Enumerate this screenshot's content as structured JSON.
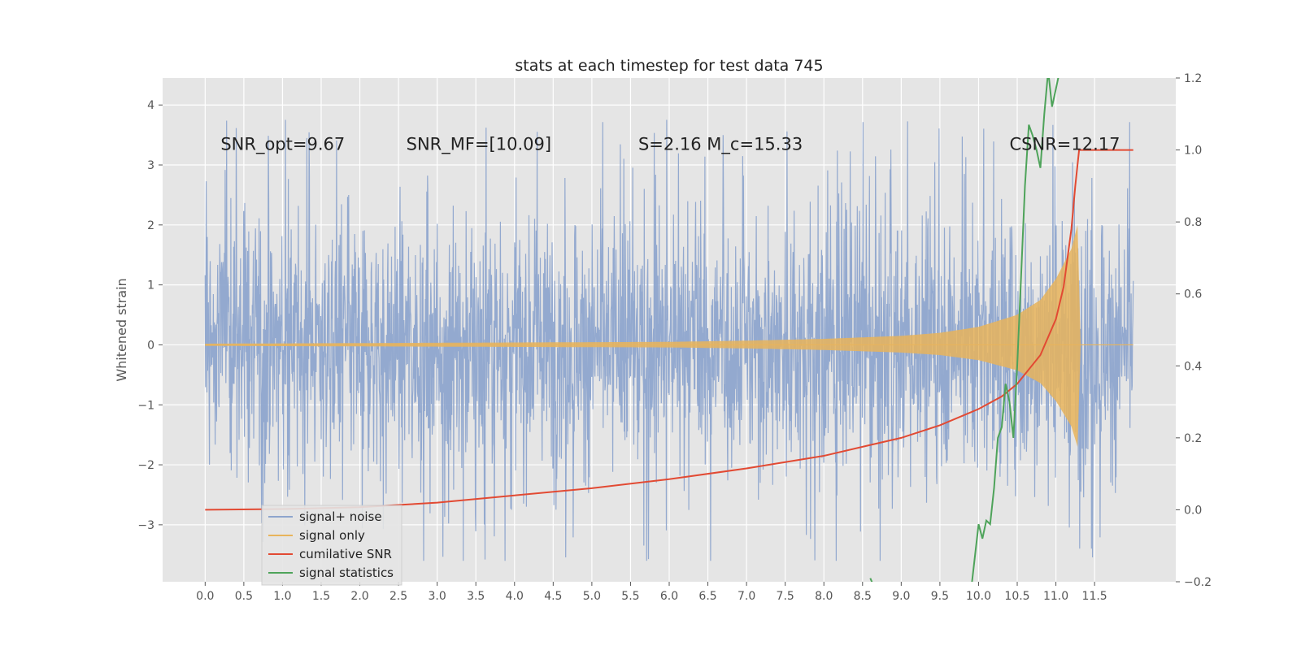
{
  "chart_data": {
    "type": "line",
    "title": "stats at each timestep for test data 745",
    "xlabel": "",
    "ylabel": "Whitened strain",
    "y2label": "",
    "xlim": [
      -0.55,
      12.55
    ],
    "ylim": [
      -3.95,
      4.45
    ],
    "y2lim": [
      -0.2,
      1.2
    ],
    "x_ticks": [
      0.0,
      0.5,
      1.0,
      1.5,
      2.0,
      2.5,
      3.0,
      3.5,
      4.0,
      4.5,
      5.0,
      5.5,
      6.0,
      6.5,
      7.0,
      7.5,
      8.0,
      8.5,
      9.0,
      9.5,
      10.0,
      10.5,
      11.0,
      11.5
    ],
    "x_tick_labels": [
      "0.0",
      "0.5",
      "1.0",
      "1.5",
      "2.0",
      "2.5",
      "3.0",
      "3.5",
      "4.0",
      "4.5",
      "5.0",
      "5.5",
      "6.0",
      "6.5",
      "7.0",
      "7.5",
      "8.0",
      "8.5",
      "9.0",
      "9.5",
      "10.0",
      "10.5",
      "11.0",
      "11.5"
    ],
    "y_ticks": [
      -3,
      -2,
      -1,
      0,
      1,
      2,
      3,
      4
    ],
    "y_tick_labels": [
      "−3",
      "−2",
      "−1",
      "0",
      "1",
      "2",
      "3",
      "4"
    ],
    "y2_ticks": [
      -0.2,
      0.0,
      0.2,
      0.4,
      0.6,
      0.8,
      1.0,
      1.2
    ],
    "y2_tick_labels": [
      "−0.2",
      "0.0",
      "0.2",
      "0.4",
      "0.6",
      "0.8",
      "1.0",
      "1.2"
    ],
    "grid": true,
    "legend_position": "lower-left",
    "annotations": [
      {
        "text": "SNR_opt=9.67",
        "x": 0.2,
        "y": 3.25
      },
      {
        "text": "SNR_MF=[10.09]",
        "x": 2.6,
        "y": 3.25
      },
      {
        "text": "S=2.16   M_c=15.33",
        "x": 5.6,
        "y": 3.25
      },
      {
        "text": "CSNR=12.17",
        "x": 10.4,
        "y": 3.25
      }
    ],
    "series": [
      {
        "name": "signal+ noise",
        "color": "#8ea5cd",
        "axis": "left",
        "x_range": [
          0.0,
          12.0
        ],
        "amplitude_envelope": [
          -3.6,
          4.1
        ],
        "typical_spread": 1.35
      },
      {
        "name": "signal only",
        "color": "#e8b45c",
        "axis": "left",
        "envelope": {
          "x": [
            0.0,
            2.0,
            4.0,
            6.0,
            7.0,
            8.0,
            9.0,
            9.5,
            10.0,
            10.5,
            10.8,
            11.0,
            11.2,
            11.28,
            11.32,
            12.0
          ],
          "amp": [
            0.02,
            0.03,
            0.04,
            0.05,
            0.07,
            0.1,
            0.15,
            0.2,
            0.3,
            0.5,
            0.75,
            1.1,
            1.6,
            2.0,
            0.0,
            0.0
          ]
        }
      },
      {
        "name": "cumilative SNR",
        "color": "#e24a33",
        "axis": "right",
        "x": [
          0.0,
          1.0,
          2.0,
          3.0,
          4.0,
          5.0,
          6.0,
          7.0,
          8.0,
          8.5,
          9.0,
          9.5,
          10.0,
          10.3,
          10.5,
          10.8,
          11.0,
          11.1,
          11.2,
          11.25,
          11.3,
          12.0
        ],
        "y": [
          0.0,
          0.002,
          0.007,
          0.02,
          0.04,
          0.06,
          0.085,
          0.115,
          0.15,
          0.175,
          0.2,
          0.235,
          0.28,
          0.315,
          0.35,
          0.43,
          0.53,
          0.62,
          0.78,
          0.9,
          1.0,
          1.0
        ]
      },
      {
        "name": "signal statistics",
        "color": "#4ea35a",
        "axis": "right",
        "x": [
          8.6,
          8.62,
          8.64,
          8.66
        ],
        "y": [
          -0.19,
          -0.2,
          -0.21,
          -0.22
        ],
        "x2": [
          9.9,
          10.0,
          10.05,
          10.1,
          10.15,
          10.2,
          10.25,
          10.3,
          10.35,
          10.4,
          10.45,
          10.5,
          10.55,
          10.6,
          10.65,
          10.7,
          10.75,
          10.8,
          10.85,
          10.9,
          10.95,
          11.0,
          11.05,
          11.1
        ],
        "y2": [
          -0.23,
          -0.04,
          -0.08,
          -0.03,
          -0.04,
          0.06,
          0.2,
          0.23,
          0.35,
          0.3,
          0.2,
          0.4,
          0.65,
          0.9,
          1.07,
          1.04,
          1.0,
          0.95,
          1.1,
          1.22,
          1.12,
          1.17,
          1.22,
          1.25
        ]
      }
    ]
  }
}
